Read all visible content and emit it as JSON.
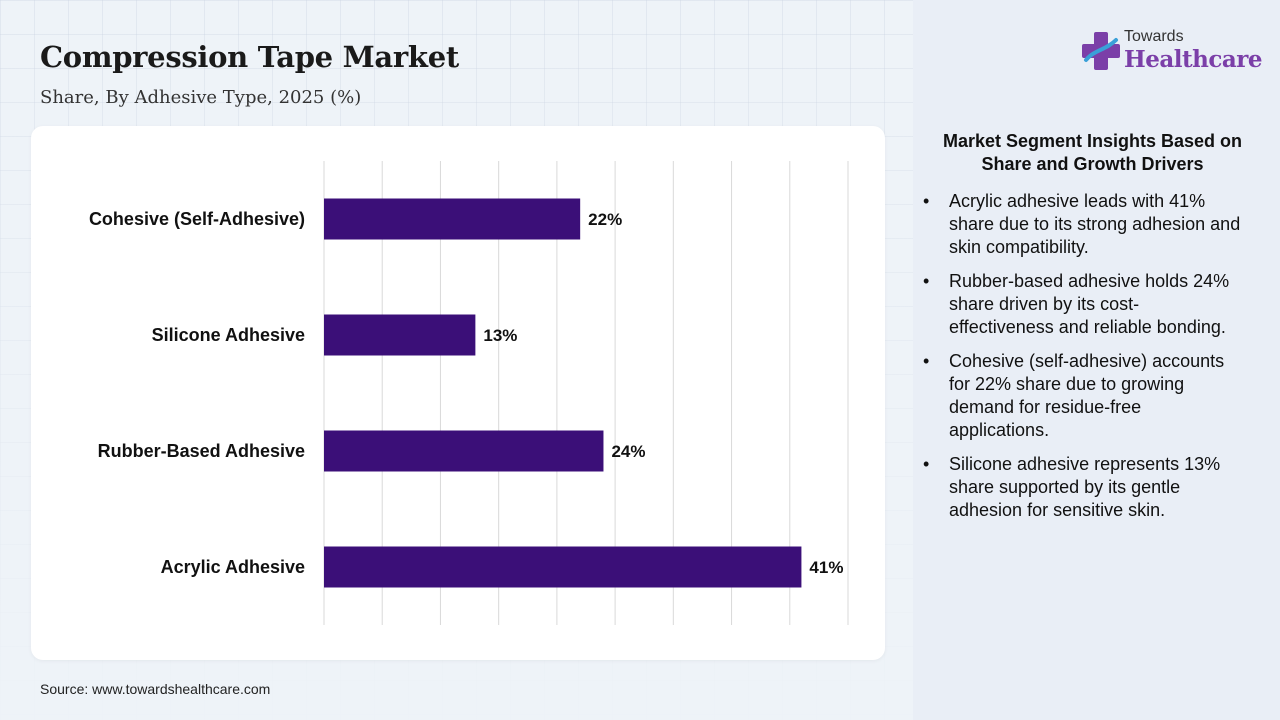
{
  "header": {
    "title": "Compression Tape Market",
    "subtitle": "Share, By Adhesive Type, 2025 (%)"
  },
  "logo": {
    "line1": "Towards",
    "line2": "Healthcare"
  },
  "source": "Source: www.towardshealthcare.com",
  "insights": {
    "heading": "Market Segment Insights Based on Share and Growth Drivers",
    "bullet_char": "•",
    "items": [
      "Acrylic adhesive leads with 41% share due to its strong adhesion and skin compatibility.",
      "Rubber-based adhesive holds 24% share driven by its cost-effectiveness and reliable bonding.",
      "Cohesive (self-adhesive) accounts for 22% share due to growing demand for residue-free applications.",
      "Silicone adhesive represents 13% share supported by its gentle adhesion for sensitive skin."
    ]
  },
  "colors": {
    "bar": "#3b0f78",
    "gridline": "#d9d9d9",
    "logo_accent": "#7b3fa8",
    "logo_accent2": "#3aa0d8"
  },
  "chart_data": {
    "type": "bar",
    "orientation": "horizontal",
    "categories": [
      "Cohesive (Self-Adhesive)",
      "Silicone Adhesive",
      "Rubber-Based Adhesive",
      "Acrylic Adhesive"
    ],
    "values": [
      22,
      13,
      24,
      41
    ],
    "value_labels": [
      "22%",
      "13%",
      "24%",
      "41%"
    ],
    "xlim": [
      0,
      45
    ],
    "grid": true,
    "legend": "none"
  }
}
